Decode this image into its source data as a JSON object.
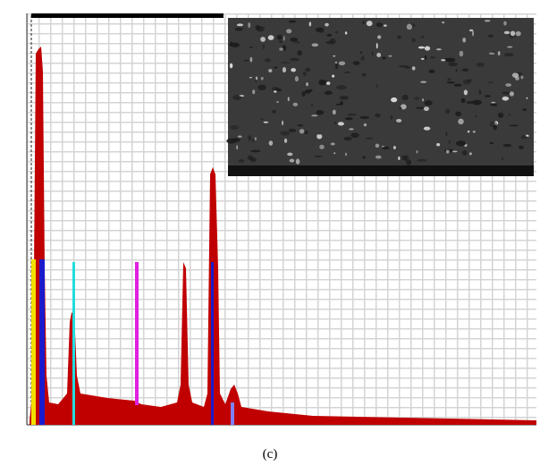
{
  "figure": {
    "caption": "(c)"
  }
}
